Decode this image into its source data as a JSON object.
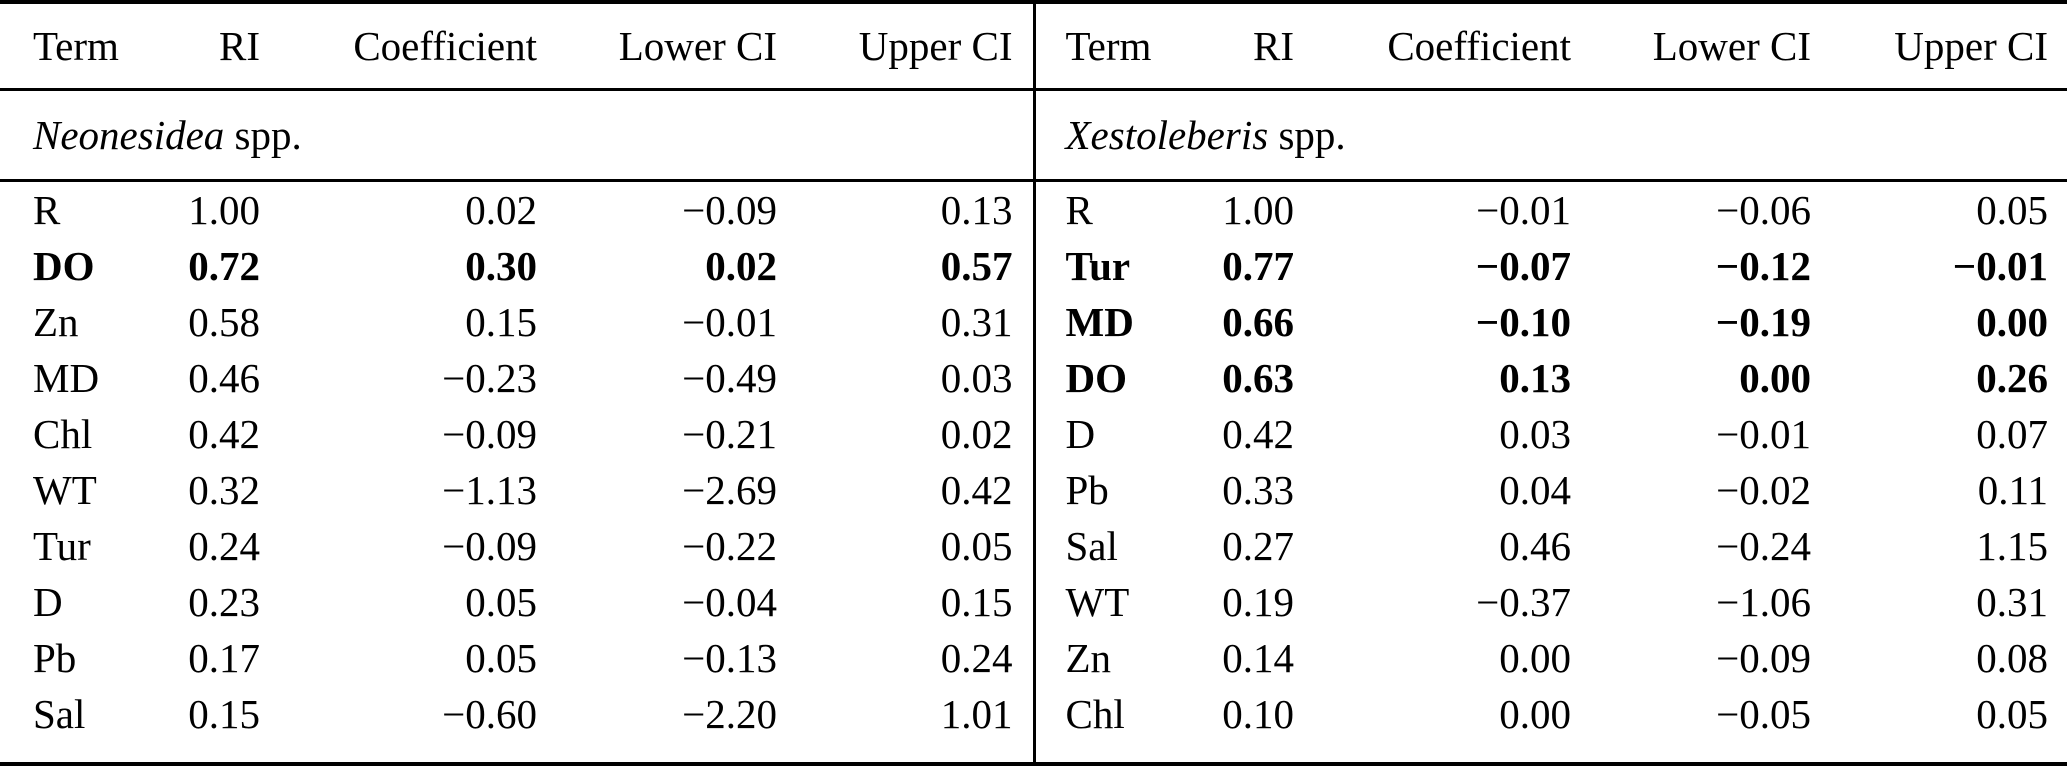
{
  "table": {
    "columns": [
      "Term",
      "RI",
      "Coefficient",
      "Lower CI",
      "Upper CI"
    ],
    "sections": [
      {
        "title_genus": "Neonesidea",
        "title_suffix": " spp.",
        "rows": [
          {
            "cells": [
              "R",
              "1.00",
              "0.02",
              "−0.09",
              "0.13"
            ],
            "bold": false
          },
          {
            "cells": [
              "DO",
              "0.72",
              "0.30",
              "0.02",
              "0.57"
            ],
            "bold": true
          },
          {
            "cells": [
              "Zn",
              "0.58",
              "0.15",
              "−0.01",
              "0.31"
            ],
            "bold": false
          },
          {
            "cells": [
              "MD",
              "0.46",
              "−0.23",
              "−0.49",
              "0.03"
            ],
            "bold": false
          },
          {
            "cells": [
              "Chl",
              "0.42",
              "−0.09",
              "−0.21",
              "0.02"
            ],
            "bold": false
          },
          {
            "cells": [
              "WT",
              "0.32",
              "−1.13",
              "−2.69",
              "0.42"
            ],
            "bold": false
          },
          {
            "cells": [
              "Tur",
              "0.24",
              "−0.09",
              "−0.22",
              "0.05"
            ],
            "bold": false
          },
          {
            "cells": [
              "D",
              "0.23",
              "0.05",
              "−0.04",
              "0.15"
            ],
            "bold": false
          },
          {
            "cells": [
              "Pb",
              "0.17",
              "0.05",
              "−0.13",
              "0.24"
            ],
            "bold": false
          },
          {
            "cells": [
              "Sal",
              "0.15",
              "−0.60",
              "−2.20",
              "1.01"
            ],
            "bold": false
          }
        ]
      },
      {
        "title_genus": "Xestoleberis",
        "title_suffix": " spp.",
        "rows": [
          {
            "cells": [
              "R",
              "1.00",
              "−0.01",
              "−0.06",
              "0.05"
            ],
            "bold": false
          },
          {
            "cells": [
              "Tur",
              "0.77",
              "−0.07",
              "−0.12",
              "−0.01"
            ],
            "bold": true
          },
          {
            "cells": [
              "MD",
              "0.66",
              "−0.10",
              "−0.19",
              "0.00"
            ],
            "bold": true
          },
          {
            "cells": [
              "DO",
              "0.63",
              "0.13",
              "0.00",
              "0.26"
            ],
            "bold": true
          },
          {
            "cells": [
              "D",
              "0.42",
              "0.03",
              "−0.01",
              "0.07"
            ],
            "bold": false
          },
          {
            "cells": [
              "Pb",
              "0.33",
              "0.04",
              "−0.02",
              "0.11"
            ],
            "bold": false
          },
          {
            "cells": [
              "Sal",
              "0.27",
              "0.46",
              "−0.24",
              "1.15"
            ],
            "bold": false
          },
          {
            "cells": [
              "WT",
              "0.19",
              "−0.37",
              "−1.06",
              "0.31"
            ],
            "bold": false
          },
          {
            "cells": [
              "Zn",
              "0.14",
              "0.00",
              "−0.09",
              "0.08"
            ],
            "bold": false
          },
          {
            "cells": [
              "Chl",
              "0.10",
              "0.00",
              "−0.05",
              "0.05"
            ],
            "bold": false
          }
        ]
      }
    ]
  }
}
